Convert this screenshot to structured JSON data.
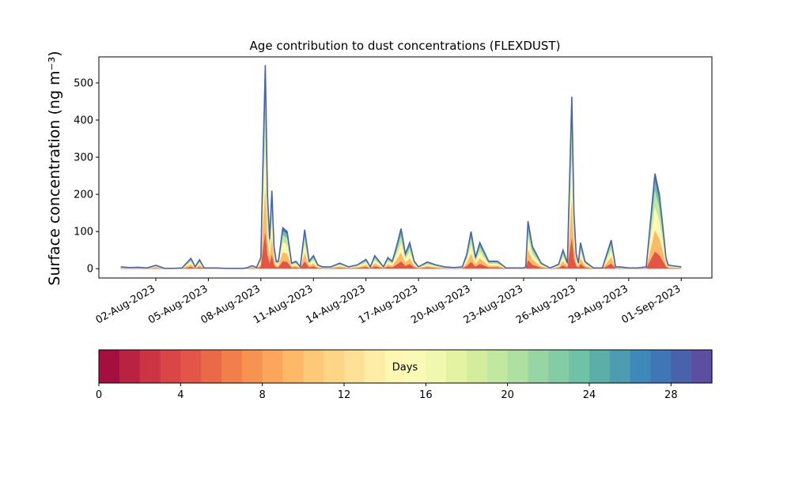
{
  "chart_data": {
    "type": "area",
    "title": "Age contribution to dust concentrations (FLEXDUST)",
    "ylabel": "Surface concentration (ng m⁻³)",
    "xlabel": "",
    "ylim": [
      -25,
      570
    ],
    "yticks": [
      0,
      100,
      200,
      300,
      400,
      500
    ],
    "xlim_date": [
      "2023-07-29T18:00",
      "2023-09-02T18:00"
    ],
    "xticks": [
      {
        "date": "2023-08-02",
        "label": "02-Aug-2023"
      },
      {
        "date": "2023-08-05",
        "label": "05-Aug-2023"
      },
      {
        "date": "2023-08-08",
        "label": "08-Aug-2023"
      },
      {
        "date": "2023-08-11",
        "label": "11-Aug-2023"
      },
      {
        "date": "2023-08-14",
        "label": "14-Aug-2023"
      },
      {
        "date": "2023-08-17",
        "label": "17-Aug-2023"
      },
      {
        "date": "2023-08-20",
        "label": "20-Aug-2023"
      },
      {
        "date": "2023-08-23",
        "label": "23-Aug-2023"
      },
      {
        "date": "2023-08-26",
        "label": "26-Aug-2023"
      },
      {
        "date": "2023-08-29",
        "label": "29-Aug-2023"
      },
      {
        "date": "2023-09-01",
        "label": "01-Sep-2023"
      }
    ],
    "series_note": "stacked contributions by particle age; total curve shown",
    "x": [
      "2023-07-31T00:00",
      "2023-07-31T12:00",
      "2023-08-01T00:00",
      "2023-08-01T12:00",
      "2023-08-02T00:00",
      "2023-08-02T12:00",
      "2023-08-03T00:00",
      "2023-08-03T12:00",
      "2023-08-04T00:00",
      "2023-08-04T06:00",
      "2023-08-04T12:00",
      "2023-08-04T18:00",
      "2023-08-05T00:00",
      "2023-08-05T12:00",
      "2023-08-06T00:00",
      "2023-08-06T12:00",
      "2023-08-07T00:00",
      "2023-08-07T06:00",
      "2023-08-07T12:00",
      "2023-08-07T18:00",
      "2023-08-08T00:00",
      "2023-08-08T03:00",
      "2023-08-08T06:00",
      "2023-08-08T09:00",
      "2023-08-08T12:00",
      "2023-08-08T15:00",
      "2023-08-08T18:00",
      "2023-08-08T21:00",
      "2023-08-09T00:00",
      "2023-08-09T06:00",
      "2023-08-09T12:00",
      "2023-08-09T18:00",
      "2023-08-10T00:00",
      "2023-08-10T06:00",
      "2023-08-10T12:00",
      "2023-08-10T18:00",
      "2023-08-11T00:00",
      "2023-08-11T06:00",
      "2023-08-11T12:00",
      "2023-08-12T00:00",
      "2023-08-12T12:00",
      "2023-08-13T00:00",
      "2023-08-13T12:00",
      "2023-08-14T00:00",
      "2023-08-14T06:00",
      "2023-08-14T12:00",
      "2023-08-15T00:00",
      "2023-08-15T06:00",
      "2023-08-15T12:00",
      "2023-08-15T18:00",
      "2023-08-16T00:00",
      "2023-08-16T06:00",
      "2023-08-16T12:00",
      "2023-08-16T18:00",
      "2023-08-17T00:00",
      "2023-08-17T12:00",
      "2023-08-18T00:00",
      "2023-08-18T12:00",
      "2023-08-19T00:00",
      "2023-08-19T12:00",
      "2023-08-19T18:00",
      "2023-08-20T00:00",
      "2023-08-20T06:00",
      "2023-08-20T12:00",
      "2023-08-21T00:00",
      "2023-08-21T12:00",
      "2023-08-22T00:00",
      "2023-08-22T12:00",
      "2023-08-23T00:00",
      "2023-08-23T03:00",
      "2023-08-23T06:00",
      "2023-08-23T12:00",
      "2023-08-24T00:00",
      "2023-08-24T12:00",
      "2023-08-25T00:00",
      "2023-08-25T06:00",
      "2023-08-25T12:00",
      "2023-08-25T18:00",
      "2023-08-25T21:00",
      "2023-08-26T00:00",
      "2023-08-26T03:00",
      "2023-08-26T06:00",
      "2023-08-26T12:00",
      "2023-08-26T18:00",
      "2023-08-27T00:00",
      "2023-08-27T12:00",
      "2023-08-28T00:00",
      "2023-08-28T06:00",
      "2023-08-28T12:00",
      "2023-08-29T00:00",
      "2023-08-29T12:00",
      "2023-08-30T00:00",
      "2023-08-30T12:00",
      "2023-08-30T18:00",
      "2023-08-31T00:00",
      "2023-08-31T03:00",
      "2023-08-31T06:00",
      "2023-08-31T12:00",
      "2023-09-01T00:00"
    ],
    "total": [
      5,
      3,
      4,
      2,
      9,
      1,
      1,
      2,
      28,
      5,
      24,
      2,
      2,
      2,
      1,
      1,
      1,
      3,
      8,
      3,
      30,
      300,
      548,
      200,
      80,
      210,
      60,
      20,
      20,
      110,
      100,
      15,
      20,
      5,
      105,
      20,
      35,
      10,
      5,
      5,
      15,
      5,
      10,
      25,
      5,
      35,
      5,
      30,
      20,
      60,
      108,
      40,
      70,
      20,
      5,
      18,
      10,
      5,
      3,
      5,
      38,
      100,
      30,
      70,
      20,
      20,
      2,
      2,
      2,
      5,
      128,
      60,
      15,
      2,
      12,
      50,
      15,
      463,
      150,
      40,
      15,
      70,
      20,
      10,
      2,
      2,
      77,
      5,
      5,
      2,
      2,
      5,
      256,
      200,
      90,
      30,
      10,
      8,
      5
    ],
    "colorbar": {
      "label": "Days",
      "min": 0,
      "max": 30,
      "ticks": [
        0,
        4,
        8,
        12,
        16,
        20,
        24,
        28
      ],
      "colors": [
        "#a50f3f",
        "#b92240",
        "#cc3444",
        "#da4547",
        "#e35647",
        "#ea6a48",
        "#f27e4b",
        "#f79352",
        "#fba65c",
        "#fdb968",
        "#fdc877",
        "#fed587",
        "#fee197",
        "#feeda6",
        "#fdf7b2",
        "#f8fab5",
        "#f0f7ae",
        "#e3f3a1",
        "#d4ed9c",
        "#c2e79f",
        "#aedfa3",
        "#98d5a4",
        "#83cca5",
        "#6fc2a5",
        "#5cafa9",
        "#4d9cb0",
        "#3e89b9",
        "#3f76b6",
        "#4863ab",
        "#5e4ea2"
      ]
    }
  }
}
